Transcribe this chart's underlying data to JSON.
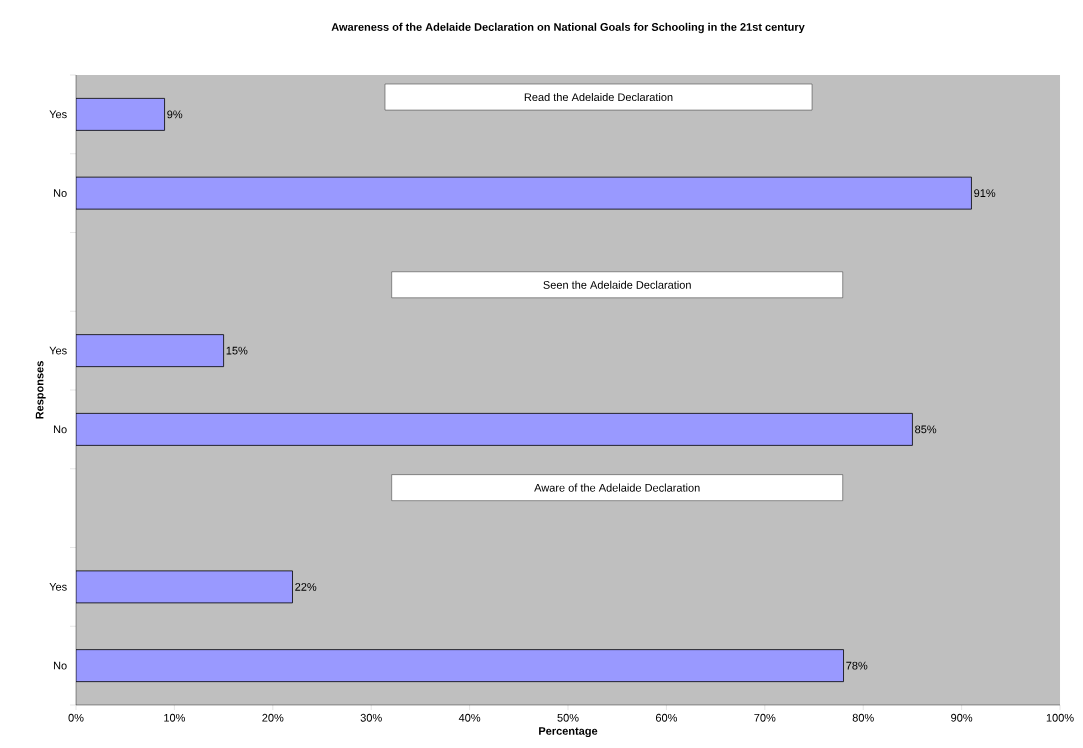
{
  "chart_data": {
    "type": "bar",
    "orientation": "horizontal",
    "title": "Awareness of the Adelaide Declaration on National Goals for Schooling in the 21st century",
    "xlabel": "Percentage",
    "ylabel": "Responses",
    "categories": [
      "Yes",
      "No",
      null,
      "Yes",
      "No",
      null,
      "Yes",
      "No"
    ],
    "values": [
      9,
      91,
      null,
      15,
      85,
      null,
      22,
      78
    ],
    "value_labels": [
      "9%",
      "91%",
      null,
      "15%",
      "85%",
      null,
      "22%",
      "78%"
    ],
    "color": "#9999ff",
    "xlim": [
      0,
      100
    ],
    "xticks": [
      {
        "value": 0,
        "label": "0%"
      },
      {
        "value": 10,
        "label": "10%"
      },
      {
        "value": 20,
        "label": "20%"
      },
      {
        "value": 30,
        "label": "30%"
      },
      {
        "value": 40,
        "label": "40%"
      },
      {
        "value": 50,
        "label": "50%"
      },
      {
        "value": 60,
        "label": "60%"
      },
      {
        "value": 70,
        "label": "70%"
      },
      {
        "value": 80,
        "label": "80%"
      },
      {
        "value": 90,
        "label": "90%"
      },
      {
        "value": 100,
        "label": "100%"
      }
    ],
    "annotations": [
      "Read the Adelaide Declaration",
      "Seen the Adelaide Declaration",
      "Aware of the Adelaide Declaration"
    ],
    "grid": false
  }
}
